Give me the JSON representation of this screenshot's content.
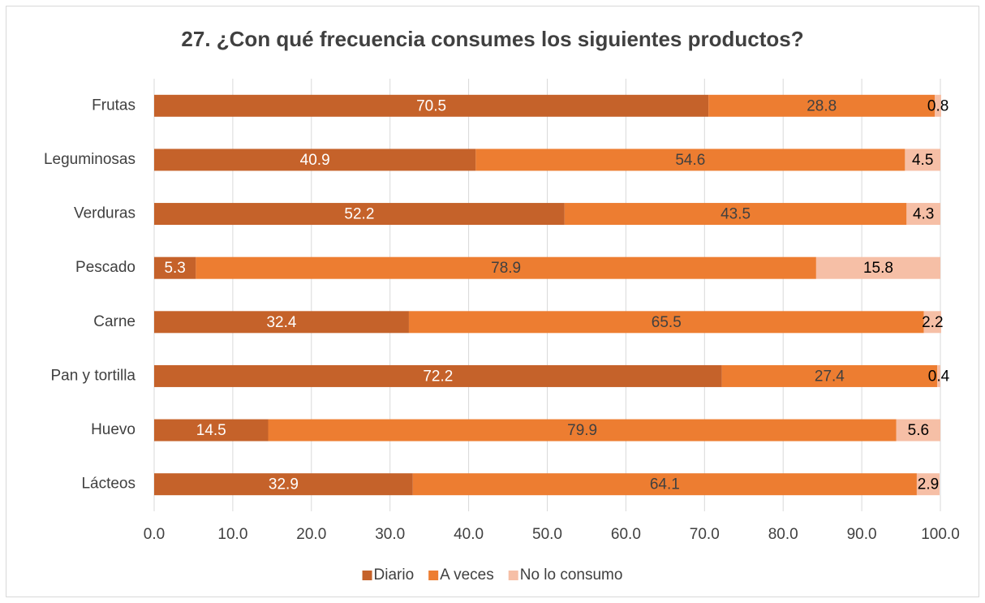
{
  "chart_data": {
    "type": "stacked_bar_horizontal",
    "title": "27. ¿Con qué frecuencia consumes los siguientes productos?",
    "categories": [
      "Frutas",
      "Leguminosas",
      "Verduras",
      "Pescado",
      "Carne",
      "Pan y tortilla",
      "Huevo",
      "Lácteos"
    ],
    "series": [
      {
        "name": "Diario",
        "color": "#c5622a",
        "label_color": "#ffffff",
        "values": [
          70.5,
          40.9,
          52.2,
          5.3,
          32.4,
          72.2,
          14.5,
          32.9
        ]
      },
      {
        "name": "A veces",
        "color": "#ed7d31",
        "label_color": "#404040",
        "values": [
          28.8,
          54.6,
          43.5,
          78.9,
          65.5,
          27.4,
          79.9,
          64.1
        ]
      },
      {
        "name": "No lo consumo",
        "color": "#f6bfa6",
        "label_color": "#000000",
        "values": [
          0.8,
          4.5,
          4.3,
          15.8,
          2.2,
          0.4,
          5.6,
          2.9
        ]
      }
    ],
    "xlim": [
      0,
      100
    ],
    "xticks": [
      {
        "value": 0,
        "label": "0.0"
      },
      {
        "value": 10,
        "label": "10.0"
      },
      {
        "value": 20,
        "label": "20.0"
      },
      {
        "value": 30,
        "label": "30.0"
      },
      {
        "value": 40,
        "label": "40.0"
      },
      {
        "value": 50,
        "label": "50.0"
      },
      {
        "value": 60,
        "label": "60.0"
      },
      {
        "value": 70,
        "label": "70.0"
      },
      {
        "value": 80,
        "label": "80.0"
      },
      {
        "value": 90,
        "label": "90.0"
      },
      {
        "value": 100,
        "label": "100.0"
      }
    ],
    "grid": true,
    "legend": "bottom"
  }
}
